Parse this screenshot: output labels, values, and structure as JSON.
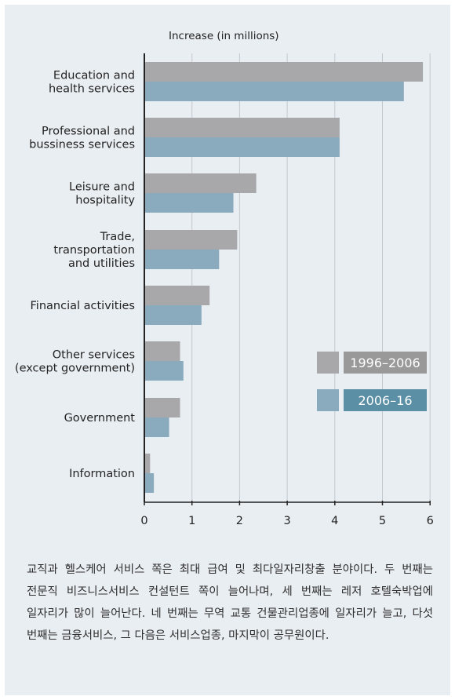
{
  "chart_data": {
    "type": "bar",
    "orientation": "horizontal",
    "title": "Increase (in millions)",
    "categories": [
      "Education and\nhealth services",
      "Professional and\nbussiness services",
      "Leisure and\nhospitality",
      "Trade,\ntransportation\nand utilities",
      "Financial activities",
      "Other services\n(except government)",
      "Government",
      "Information"
    ],
    "series": [
      {
        "name": "1996–2006",
        "color": "#a8a8aa",
        "values": [
          5.85,
          4.1,
          2.35,
          1.95,
          1.37,
          0.75,
          0.75,
          0.12
        ]
      },
      {
        "name": "2006–16",
        "color": "#8aaabd",
        "values": [
          5.45,
          4.1,
          1.87,
          1.57,
          1.2,
          0.82,
          0.52,
          0.2
        ]
      }
    ],
    "xticks": [
      "0",
      "1",
      "2",
      "3",
      "4",
      "5",
      "6"
    ],
    "xlim": [
      0,
      6
    ],
    "grid": "vertical",
    "legend": "right",
    "legend_label_colors": [
      "#999999",
      "#5b8fa5"
    ]
  },
  "caption": "교직과 헬스케어 서비스 쪽은 최대 급여 및 최다일자리창출 분야이다. 두 번째는 전문직 비즈니스서비스 컨설턴트 쪽이 늘어나며, 세 번째는 레저 호텔숙박업에 일자리가 많이 늘어난다. 네 번째는 무역 교통 건물관리업종에 일자리가 늘고, 다섯 번째는 금융서비스, 그 다음은 서비스업종, 마지막이 공무원이다."
}
